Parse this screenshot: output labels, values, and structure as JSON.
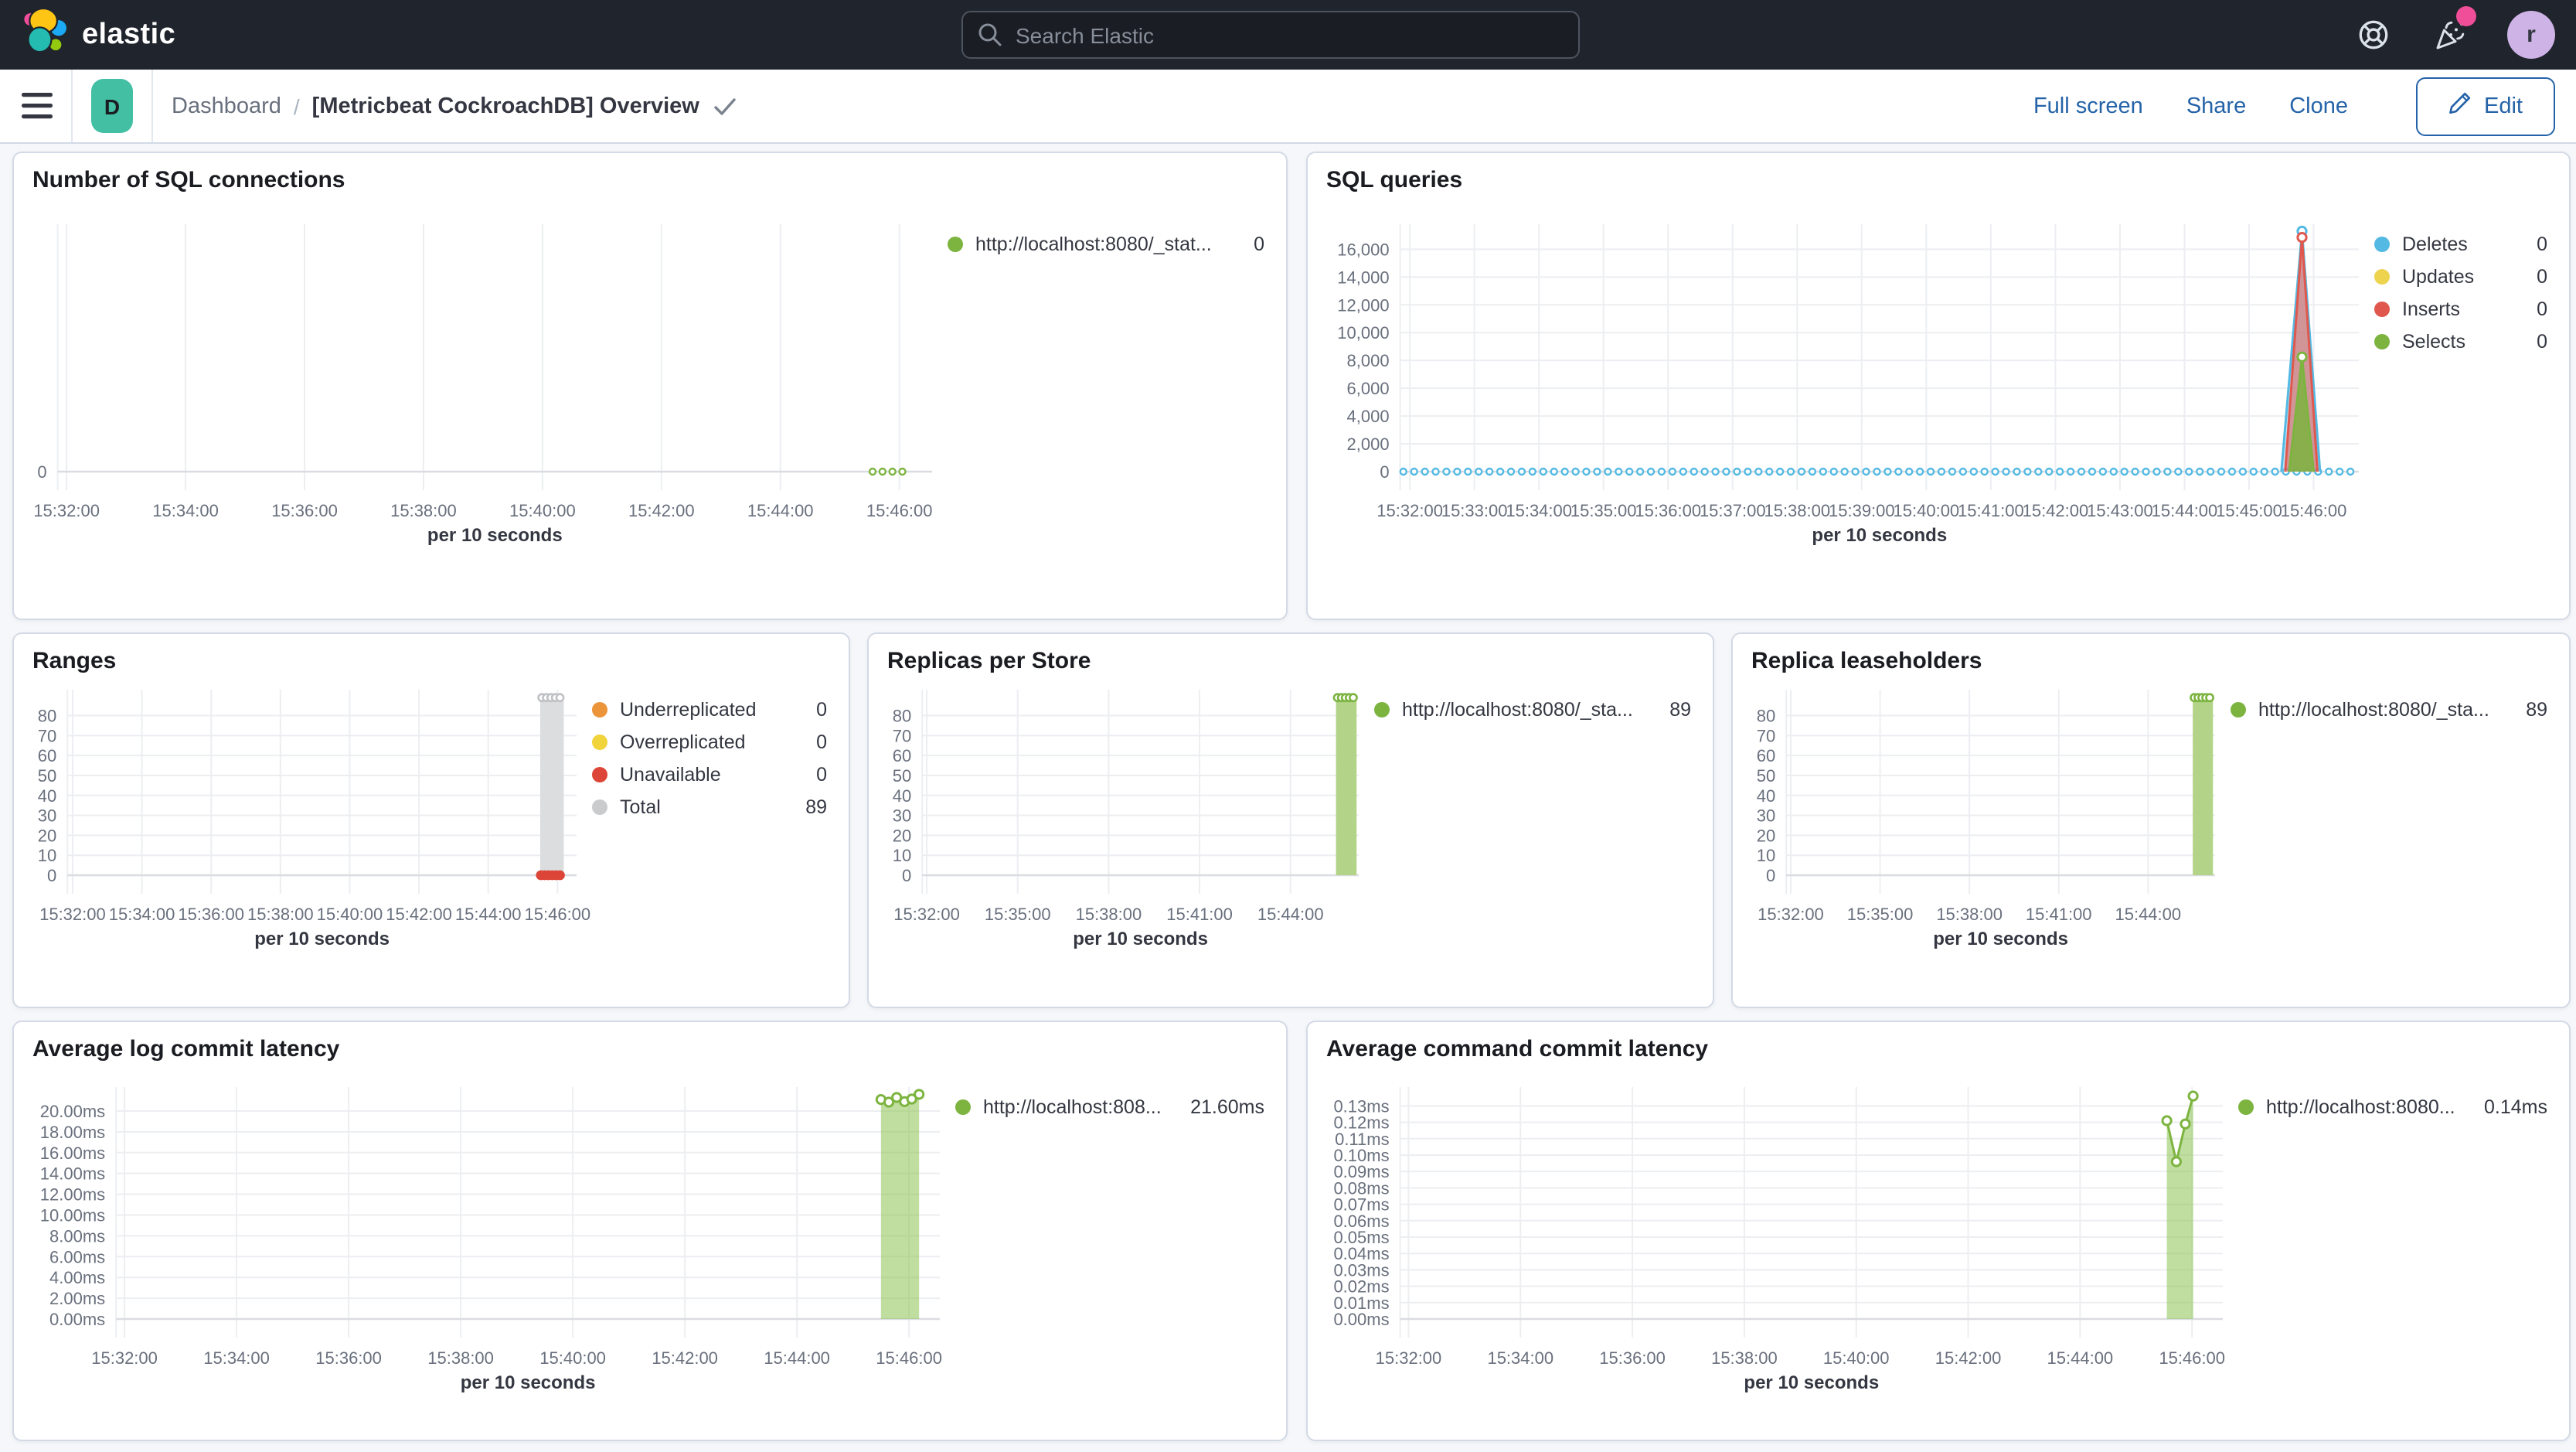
{
  "navbar": {
    "brand": "elastic",
    "search_placeholder": "Search Elastic",
    "avatar_initial": "r"
  },
  "toolbar": {
    "breadcrumb_root": "Dashboard",
    "breadcrumb_separator": "/",
    "title": "[Metricbeat CockroachDB] Overview",
    "actions": {
      "full_screen": "Full screen",
      "share": "Share",
      "clone": "Clone",
      "edit": "Edit"
    },
    "badge_letter": "D"
  },
  "colors": {
    "accent_blue": "#2563A8",
    "badge_teal": "#43BFA3",
    "notification_pink": "#F04E98",
    "series_green": "#7DB440",
    "series_blue": "#54B9E3",
    "series_yellow": "#EDD34E",
    "series_red": "#E0584D",
    "series_orange": "#EB9439",
    "series_gray": "#C9CBCD"
  },
  "chart_data": [
    {
      "type": "line",
      "title": "Number of SQL connections",
      "x_title": "per 10 seconds",
      "t_min": -0.15,
      "t_max": 14.55,
      "y_min": 0,
      "y_max": 10,
      "x_ticks": [
        {
          "label": "15:32:00",
          "t": 0
        },
        {
          "label": "15:34:00",
          "t": 2
        },
        {
          "label": "15:36:00",
          "t": 4
        },
        {
          "label": "15:38:00",
          "t": 6
        },
        {
          "label": "15:40:00",
          "t": 8
        },
        {
          "label": "15:42:00",
          "t": 10
        },
        {
          "label": "15:44:00",
          "t": 12
        },
        {
          "label": "15:46:00",
          "t": 14
        }
      ],
      "y_ticks": [
        {
          "label": "0",
          "v": 0
        }
      ],
      "legend": [
        {
          "label": "http://localhost:8080/_stat...",
          "value": "0",
          "color": "#7DB440"
        }
      ],
      "draw": [
        {
          "kind": "dotline",
          "t0": 13.55,
          "t1": 14.2,
          "v": 0,
          "color": "#7DB440",
          "step": 0.1667,
          "r": 2
        }
      ]
    },
    {
      "type": "line",
      "title": "SQL queries",
      "x_title": "per 10 seconds",
      "t_min": -0.15,
      "t_max": 14.7,
      "y_min": 0,
      "y_max": 17800,
      "x_ticks": [
        {
          "label": "15:32:00",
          "t": 0
        },
        {
          "label": "15:33:00",
          "t": 1
        },
        {
          "label": "15:34:00",
          "t": 2
        },
        {
          "label": "15:35:00",
          "t": 3
        },
        {
          "label": "15:36:00",
          "t": 4
        },
        {
          "label": "15:37:00",
          "t": 5
        },
        {
          "label": "15:38:00",
          "t": 6
        },
        {
          "label": "15:39:00",
          "t": 7
        },
        {
          "label": "15:40:00",
          "t": 8
        },
        {
          "label": "15:41:00",
          "t": 9
        },
        {
          "label": "15:42:00",
          "t": 10
        },
        {
          "label": "15:43:00",
          "t": 11
        },
        {
          "label": "15:44:00",
          "t": 12
        },
        {
          "label": "15:45:00",
          "t": 13
        },
        {
          "label": "15:46:00",
          "t": 14
        }
      ],
      "y_ticks": [
        {
          "label": "0",
          "v": 0
        },
        {
          "label": "2,000",
          "v": 2000
        },
        {
          "label": "4,000",
          "v": 4000
        },
        {
          "label": "6,000",
          "v": 6000
        },
        {
          "label": "8,000",
          "v": 8000
        },
        {
          "label": "10,000",
          "v": 10000
        },
        {
          "label": "12,000",
          "v": 12000
        },
        {
          "label": "14,000",
          "v": 14000
        },
        {
          "label": "16,000",
          "v": 16000
        }
      ],
      "legend": [
        {
          "label": "Deletes",
          "value": "0",
          "color": "#54B9E3"
        },
        {
          "label": "Updates",
          "value": "0",
          "color": "#EDD34E"
        },
        {
          "label": "Inserts",
          "value": "0",
          "color": "#E0584D"
        },
        {
          "label": "Selects",
          "value": "0",
          "color": "#7DB440"
        }
      ],
      "draw": [
        {
          "kind": "dotline",
          "t0": -0.1,
          "t1": 14.62,
          "v": 0,
          "color": "#54B9E3",
          "step": 0.1667,
          "r": 2
        },
        {
          "kind": "area",
          "points": [
            [
              13.5,
              0
            ],
            [
              13.82,
              17300
            ],
            [
              14.1,
              0
            ]
          ],
          "fill": "rgba(125,196,233,0.5)",
          "stroke": "#54B9E3",
          "markers": [
            [
              13.82,
              17300
            ]
          ]
        },
        {
          "kind": "area",
          "points": [
            [
              13.56,
              0
            ],
            [
              13.82,
              16850
            ],
            [
              14.06,
              0
            ]
          ],
          "fill": "rgba(224,88,77,0.55)",
          "stroke": "#E0584D",
          "markers": [
            [
              13.82,
              16850
            ]
          ]
        },
        {
          "kind": "area",
          "points": [
            [
              13.62,
              0
            ],
            [
              13.82,
              8250
            ],
            [
              14.0,
              0
            ]
          ],
          "fill": "rgba(125,180,64,0.85)",
          "stroke": "#7DB440",
          "markers": [
            [
              13.82,
              8250
            ]
          ]
        }
      ]
    },
    {
      "type": "bar",
      "title": "Ranges",
      "x_title": "per 10 seconds",
      "t_min": -0.15,
      "t_max": 14.55,
      "y_min": 0,
      "y_max": 93,
      "x_ticks": [
        {
          "label": "15:32:00",
          "t": 0
        },
        {
          "label": "15:34:00",
          "t": 2
        },
        {
          "label": "15:36:00",
          "t": 4
        },
        {
          "label": "15:38:00",
          "t": 6
        },
        {
          "label": "15:40:00",
          "t": 8
        },
        {
          "label": "15:42:00",
          "t": 10
        },
        {
          "label": "15:44:00",
          "t": 12
        },
        {
          "label": "15:46:00",
          "t": 14
        }
      ],
      "y_ticks": [
        {
          "label": "0",
          "v": 0
        },
        {
          "label": "10",
          "v": 10
        },
        {
          "label": "20",
          "v": 20
        },
        {
          "label": "30",
          "v": 30
        },
        {
          "label": "40",
          "v": 40
        },
        {
          "label": "50",
          "v": 50
        },
        {
          "label": "60",
          "v": 60
        },
        {
          "label": "70",
          "v": 70
        },
        {
          "label": "80",
          "v": 80
        }
      ],
      "legend": [
        {
          "label": "Underreplicated",
          "value": "0",
          "color": "#EB9439"
        },
        {
          "label": "Overreplicated",
          "value": "0",
          "color": "#F1D33C"
        },
        {
          "label": "Unavailable",
          "value": "0",
          "color": "#DC4537"
        },
        {
          "label": "Total",
          "value": "89",
          "color": "#C9CBCD"
        }
      ],
      "draw": [
        {
          "kind": "bar",
          "t0": 13.5,
          "t1": 14.18,
          "v": 89,
          "fill": "#DCDDDE",
          "marker": "#BFC1C4"
        },
        {
          "kind": "dotline",
          "t0": 13.52,
          "t1": 14.16,
          "v": 0,
          "color": "#DC4537",
          "step": 0.11,
          "r": 2.6,
          "solid": true
        }
      ]
    },
    {
      "type": "bar",
      "title": "Replicas per Store",
      "x_title": "per 10 seconds",
      "t_min": -0.15,
      "t_max": 14.25,
      "y_min": 0,
      "y_max": 93,
      "x_ticks": [
        {
          "label": "15:32:00",
          "t": 0
        },
        {
          "label": "15:35:00",
          "t": 3
        },
        {
          "label": "15:38:00",
          "t": 6
        },
        {
          "label": "15:41:00",
          "t": 9
        },
        {
          "label": "15:44:00",
          "t": 12
        }
      ],
      "y_ticks": [
        {
          "label": "0",
          "v": 0
        },
        {
          "label": "10",
          "v": 10
        },
        {
          "label": "20",
          "v": 20
        },
        {
          "label": "30",
          "v": 30
        },
        {
          "label": "40",
          "v": 40
        },
        {
          "label": "50",
          "v": 50
        },
        {
          "label": "60",
          "v": 60
        },
        {
          "label": "70",
          "v": 70
        },
        {
          "label": "80",
          "v": 80
        }
      ],
      "legend": [
        {
          "label": "http://localhost:8080/_sta...",
          "value": "89",
          "color": "#7DB440"
        }
      ],
      "draw": [
        {
          "kind": "bar",
          "t0": 13.5,
          "t1": 14.18,
          "v": 89,
          "fill": "#B3D488",
          "marker": "#7DB440"
        }
      ]
    },
    {
      "type": "bar",
      "title": "Replica leaseholders",
      "x_title": "per 10 seconds",
      "t_min": -0.15,
      "t_max": 14.25,
      "y_min": 0,
      "y_max": 93,
      "x_ticks": [
        {
          "label": "15:32:00",
          "t": 0
        },
        {
          "label": "15:35:00",
          "t": 3
        },
        {
          "label": "15:38:00",
          "t": 6
        },
        {
          "label": "15:41:00",
          "t": 9
        },
        {
          "label": "15:44:00",
          "t": 12
        }
      ],
      "y_ticks": [
        {
          "label": "0",
          "v": 0
        },
        {
          "label": "10",
          "v": 10
        },
        {
          "label": "20",
          "v": 20
        },
        {
          "label": "30",
          "v": 30
        },
        {
          "label": "40",
          "v": 40
        },
        {
          "label": "50",
          "v": 50
        },
        {
          "label": "60",
          "v": 60
        },
        {
          "label": "70",
          "v": 70
        },
        {
          "label": "80",
          "v": 80
        }
      ],
      "legend": [
        {
          "label": "http://localhost:8080/_sta...",
          "value": "89",
          "color": "#7DB440"
        }
      ],
      "draw": [
        {
          "kind": "bar",
          "t0": 13.5,
          "t1": 14.18,
          "v": 89,
          "fill": "#B3D488",
          "marker": "#7DB440"
        }
      ]
    },
    {
      "type": "area",
      "title": "Average log commit latency",
      "x_title": "per 10 seconds",
      "t_min": -0.15,
      "t_max": 14.55,
      "y_min": 0,
      "y_max": 22.3,
      "x_ticks": [
        {
          "label": "15:32:00",
          "t": 0
        },
        {
          "label": "15:34:00",
          "t": 2
        },
        {
          "label": "15:36:00",
          "t": 4
        },
        {
          "label": "15:38:00",
          "t": 6
        },
        {
          "label": "15:40:00",
          "t": 8
        },
        {
          "label": "15:42:00",
          "t": 10
        },
        {
          "label": "15:44:00",
          "t": 12
        },
        {
          "label": "15:46:00",
          "t": 14
        }
      ],
      "y_ticks": [
        {
          "label": "0.00ms",
          "v": 0
        },
        {
          "label": "2.00ms",
          "v": 2
        },
        {
          "label": "4.00ms",
          "v": 4
        },
        {
          "label": "6.00ms",
          "v": 6
        },
        {
          "label": "8.00ms",
          "v": 8
        },
        {
          "label": "10.00ms",
          "v": 10
        },
        {
          "label": "12.00ms",
          "v": 12
        },
        {
          "label": "14.00ms",
          "v": 14
        },
        {
          "label": "16.00ms",
          "v": 16
        },
        {
          "label": "18.00ms",
          "v": 18
        },
        {
          "label": "20.00ms",
          "v": 20
        }
      ],
      "legend": [
        {
          "label": "http://localhost:808...",
          "value": "21.60ms",
          "color": "#7DB440"
        }
      ],
      "draw": [
        {
          "kind": "area",
          "points": [
            [
              13.5,
              21.1
            ],
            [
              13.64,
              20.85
            ],
            [
              13.78,
              21.3
            ],
            [
              13.92,
              20.9
            ],
            [
              14.05,
              21.15
            ],
            [
              14.18,
              21.6
            ]
          ],
          "fill": "rgba(148,200,95,0.6)",
          "stroke": "#7DB440",
          "markers": "points"
        }
      ]
    },
    {
      "type": "area",
      "title": "Average command commit latency",
      "x_title": "per 10 seconds",
      "t_min": -0.15,
      "t_max": 14.55,
      "y_min": 0,
      "y_max": 0.1415,
      "x_ticks": [
        {
          "label": "15:32:00",
          "t": 0
        },
        {
          "label": "15:34:00",
          "t": 2
        },
        {
          "label": "15:36:00",
          "t": 4
        },
        {
          "label": "15:38:00",
          "t": 6
        },
        {
          "label": "15:40:00",
          "t": 8
        },
        {
          "label": "15:42:00",
          "t": 10
        },
        {
          "label": "15:44:00",
          "t": 12
        },
        {
          "label": "15:46:00",
          "t": 14
        }
      ],
      "y_ticks": [
        {
          "label": "0.00ms",
          "v": 0
        },
        {
          "label": "0.01ms",
          "v": 0.01
        },
        {
          "label": "0.02ms",
          "v": 0.02
        },
        {
          "label": "0.03ms",
          "v": 0.03
        },
        {
          "label": "0.04ms",
          "v": 0.04
        },
        {
          "label": "0.05ms",
          "v": 0.05
        },
        {
          "label": "0.06ms",
          "v": 0.06
        },
        {
          "label": "0.07ms",
          "v": 0.07
        },
        {
          "label": "0.08ms",
          "v": 0.08
        },
        {
          "label": "0.09ms",
          "v": 0.09
        },
        {
          "label": "0.10ms",
          "v": 0.1
        },
        {
          "label": "0.11ms",
          "v": 0.11
        },
        {
          "label": "0.12ms",
          "v": 0.12
        },
        {
          "label": "0.13ms",
          "v": 0.13
        }
      ],
      "legend": [
        {
          "label": "http://localhost:8080...",
          "value": "0.14ms",
          "color": "#7DB440"
        }
      ],
      "draw": [
        {
          "kind": "area",
          "points": [
            [
              13.55,
              0.121
            ],
            [
              13.72,
              0.096
            ],
            [
              13.88,
              0.119
            ],
            [
              14.02,
              0.136
            ]
          ],
          "fill": "rgba(148,200,95,0.6)",
          "stroke": "#7DB440",
          "markers": "points"
        }
      ]
    }
  ]
}
